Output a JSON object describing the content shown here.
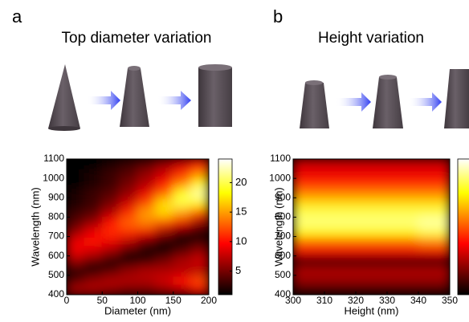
{
  "chart_data": [
    {
      "type": "heatmap",
      "panel_label": "a",
      "title": "Top diameter variation",
      "colormap": "hot",
      "xlabel": "Diameter (nm)",
      "ylabel": "Wavelength (nm)",
      "xlim": [
        0,
        200
      ],
      "ylim": [
        400,
        1100
      ],
      "xticks": [
        0,
        50,
        100,
        150,
        200
      ],
      "yticks": [
        400,
        500,
        600,
        700,
        800,
        900,
        1000,
        1100
      ],
      "zlim": [
        1,
        24
      ],
      "zticks": [
        5,
        10,
        15,
        20
      ],
      "x": [
        12.5,
        37.5,
        62.5,
        87.5,
        112.5,
        137.5,
        162.5,
        187.5
      ],
      "y": [
        425,
        475,
        525,
        575,
        625,
        675,
        725,
        775,
        825,
        875,
        925,
        975,
        1025,
        1075
      ],
      "z": [
        [
          7,
          7,
          6,
          5,
          5,
          6,
          7,
          9
        ],
        [
          4,
          6,
          7,
          7,
          7,
          8,
          10,
          12
        ],
        [
          2,
          2,
          4,
          6,
          7,
          7,
          7,
          7
        ],
        [
          6,
          4,
          2,
          2,
          3,
          5,
          7,
          8
        ],
        [
          9,
          8,
          6,
          3,
          2,
          2,
          4,
          6
        ],
        [
          9,
          10,
          9,
          7,
          4,
          2,
          2,
          3
        ],
        [
          6,
          9,
          11,
          11,
          9,
          6,
          3,
          2
        ],
        [
          4,
          6,
          10,
          13,
          14,
          12,
          9,
          6
        ],
        [
          3,
          4,
          7,
          11,
          15,
          17,
          15,
          12
        ],
        [
          2,
          3,
          5,
          8,
          12,
          17,
          20,
          18
        ],
        [
          2,
          3,
          4,
          6,
          9,
          13,
          19,
          22
        ],
        [
          1,
          2,
          3,
          5,
          7,
          10,
          14,
          18
        ],
        [
          1,
          2,
          3,
          4,
          6,
          8,
          11,
          14
        ],
        [
          1,
          1,
          2,
          3,
          4,
          6,
          8,
          10
        ]
      ]
    },
    {
      "type": "heatmap",
      "panel_label": "b",
      "title": "Height variation",
      "colormap": "hot",
      "xlabel": "Height (nm)",
      "ylabel": "Wavelength (nm)",
      "xlim": [
        300,
        350
      ],
      "ylim": [
        400,
        1100
      ],
      "xticks": [
        300,
        310,
        320,
        330,
        340,
        350
      ],
      "yticks": [
        400,
        500,
        600,
        700,
        800,
        900,
        1000,
        1100
      ],
      "zlim": [
        1,
        24
      ],
      "x": [
        305,
        315,
        325,
        335,
        345
      ],
      "y": [
        425,
        475,
        525,
        575,
        625,
        675,
        725,
        775,
        825,
        875,
        925,
        975,
        1025,
        1075
      ],
      "z": [
        [
          3,
          3,
          3,
          3,
          3
        ],
        [
          6,
          6,
          6,
          6,
          6
        ],
        [
          7,
          7,
          7,
          7,
          7
        ],
        [
          1,
          1,
          1,
          1,
          1
        ],
        [
          9,
          9,
          9,
          9,
          9
        ],
        [
          13,
          13,
          13,
          13,
          14
        ],
        [
          18,
          18,
          18,
          18,
          20
        ],
        [
          21,
          21,
          21,
          21,
          22
        ],
        [
          20,
          20,
          20,
          20,
          20
        ],
        [
          17,
          17,
          17,
          17,
          17
        ],
        [
          14,
          14,
          14,
          14,
          14
        ],
        [
          11,
          11,
          11,
          11,
          11
        ],
        [
          9,
          9,
          9,
          9,
          9
        ],
        [
          8,
          8,
          8,
          8,
          8
        ]
      ]
    }
  ]
}
